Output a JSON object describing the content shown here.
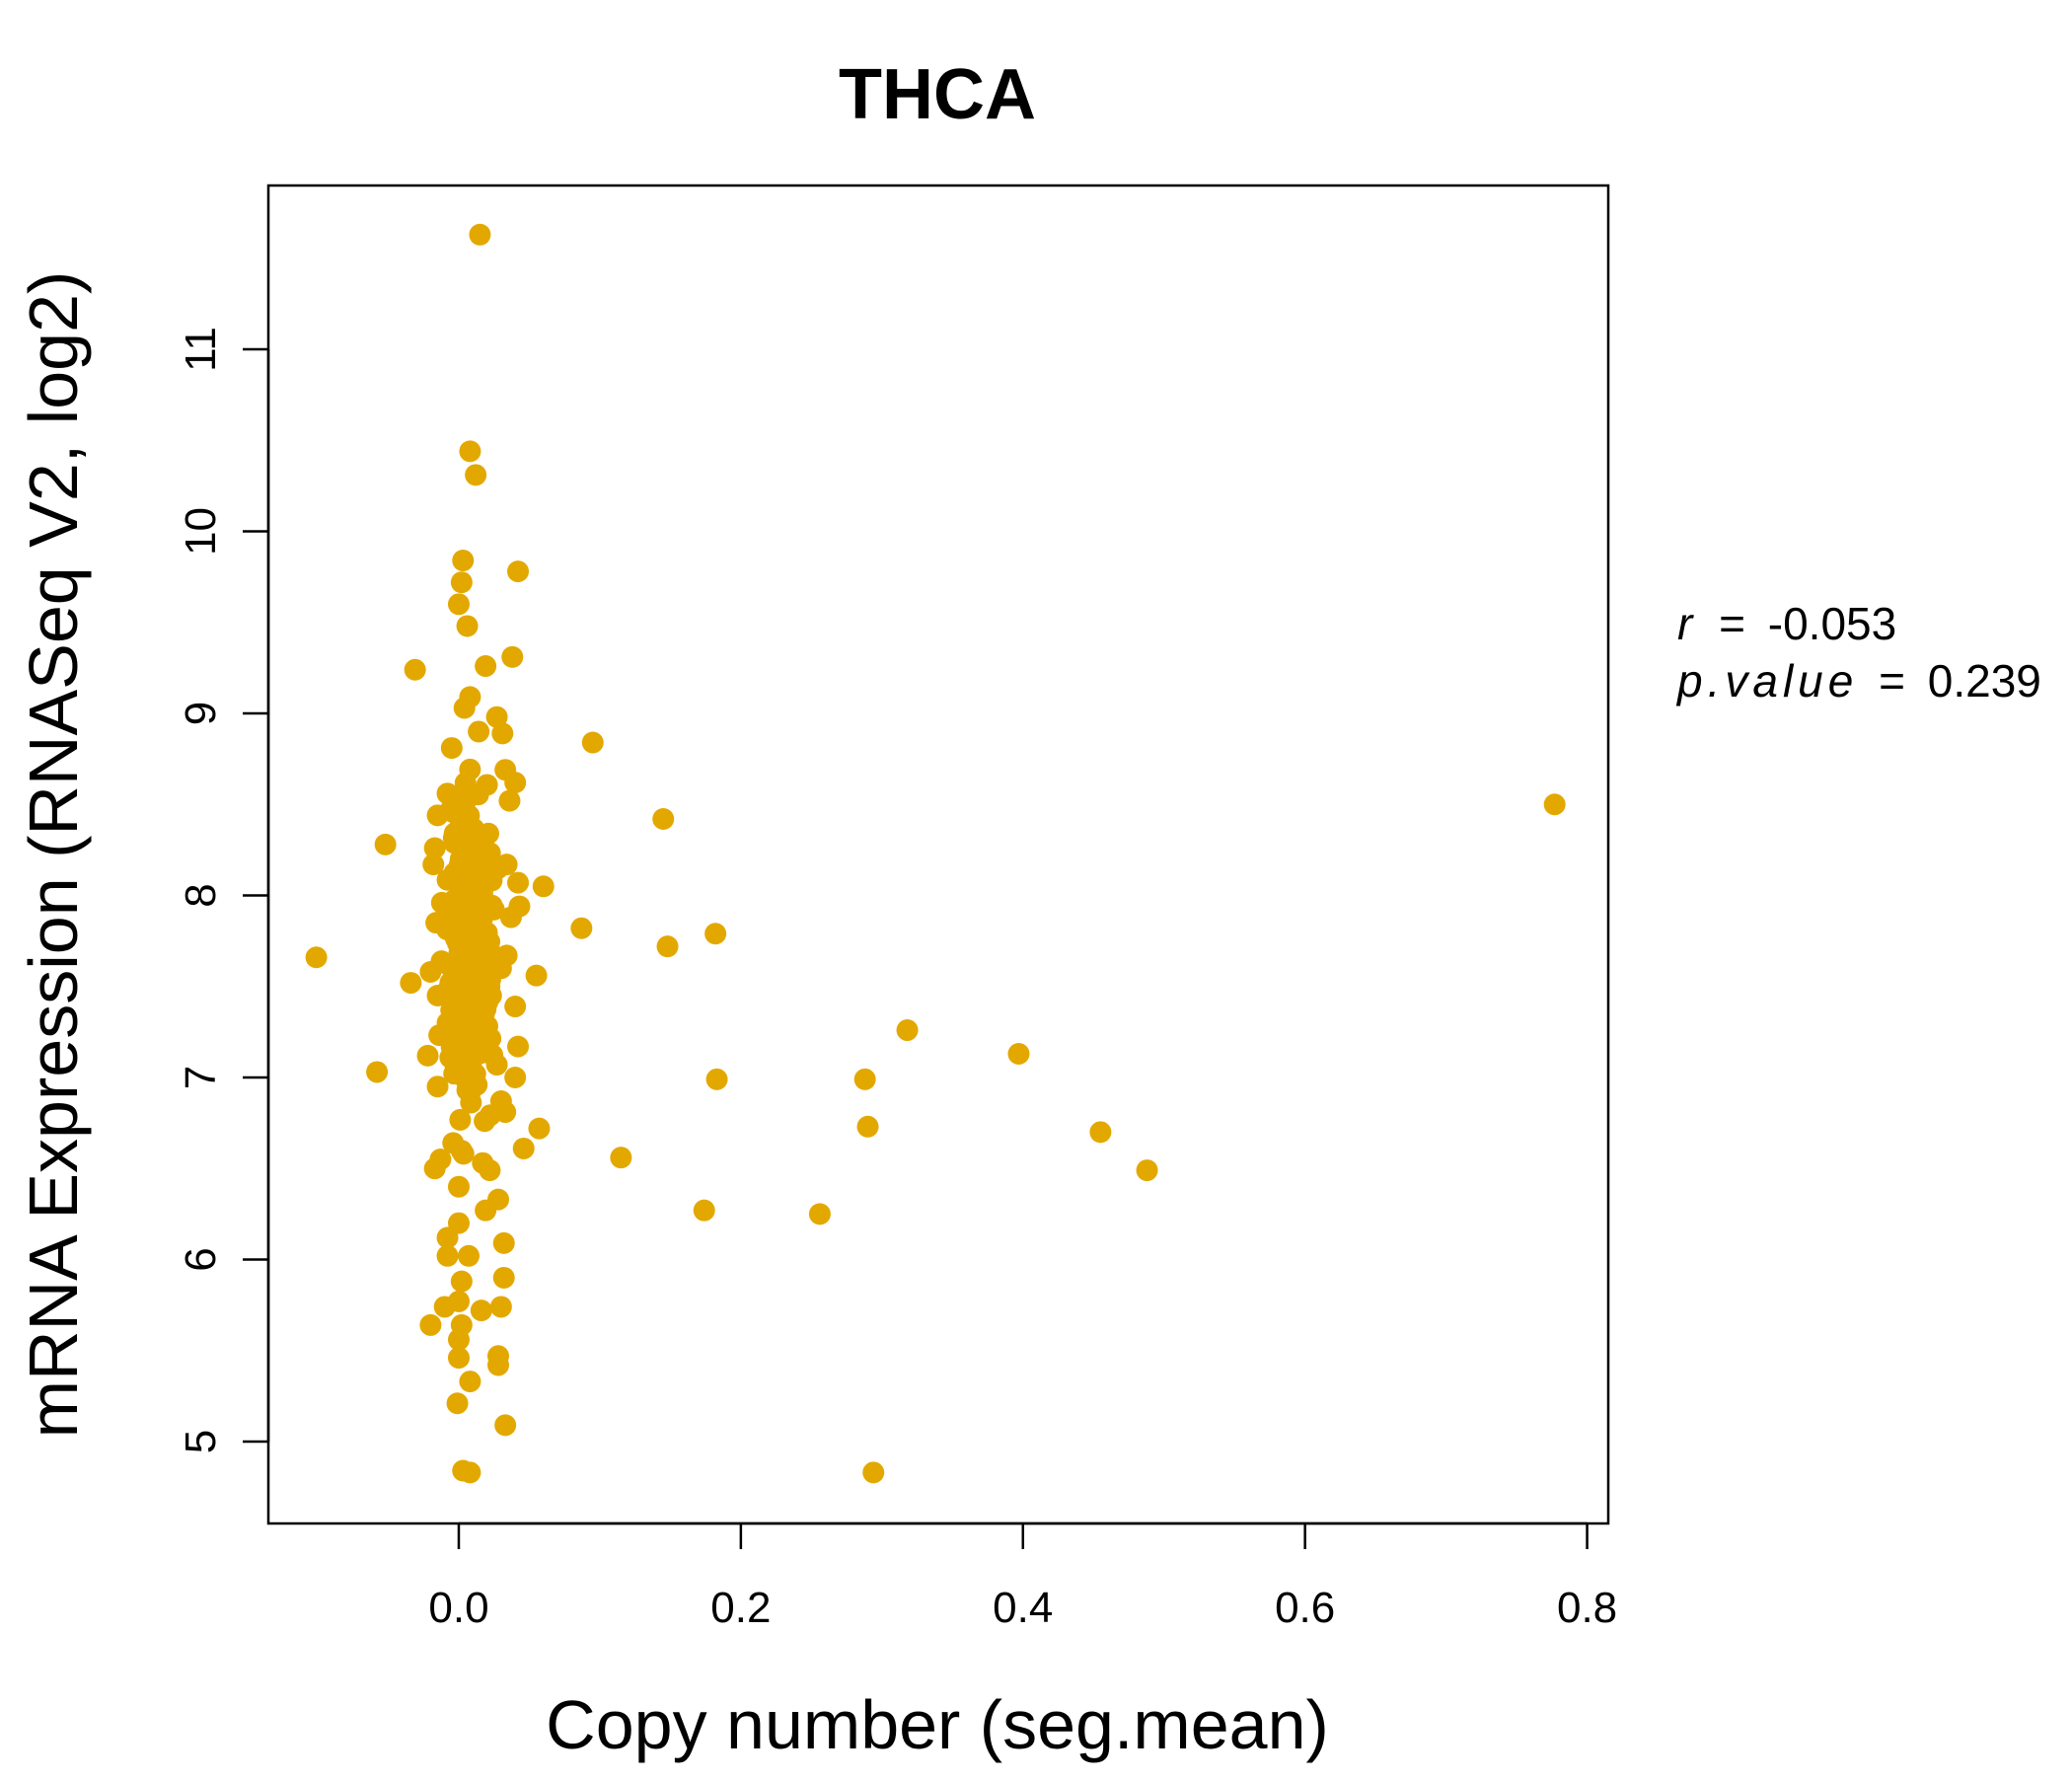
{
  "chart_data": {
    "type": "scatter",
    "title": "THCA",
    "xlabel": "Copy number (seg.mean)",
    "ylabel": "mRNA Expression (RNASeq V2, log2)",
    "xlim": [
      -0.135,
      0.815
    ],
    "ylim": [
      4.55,
      11.9
    ],
    "x_ticks": [
      0.0,
      0.2,
      0.4,
      0.6,
      0.8
    ],
    "x_tick_labels": [
      "0.0",
      "0.2",
      "0.4",
      "0.6",
      "0.8"
    ],
    "y_ticks": [
      5,
      6,
      7,
      8,
      9,
      10,
      11
    ],
    "y_tick_labels": [
      "5",
      "6",
      "7",
      "8",
      "9",
      "10",
      "11"
    ],
    "point_color": "#E3A800",
    "title_color": "#E3A800",
    "stats": {
      "r_label": "r",
      "r_value": "-0.053",
      "p_label": "p.value",
      "p_value": "0.239",
      "equals": "="
    },
    "outer_points": [
      [
        0.015,
        11.63
      ],
      [
        0.008,
        10.44
      ],
      [
        0.012,
        10.31
      ],
      [
        0.003,
        9.84
      ],
      [
        0.042,
        9.78
      ],
      [
        0.002,
        9.72
      ],
      [
        0.0,
        9.6
      ],
      [
        0.006,
        9.48
      ],
      [
        0.038,
        9.31
      ],
      [
        0.019,
        9.26
      ],
      [
        -0.031,
        9.24
      ],
      [
        0.008,
        9.09
      ],
      [
        0.004,
        9.03
      ],
      [
        0.027,
        8.98
      ],
      [
        0.031,
        8.89
      ],
      [
        0.095,
        8.84
      ],
      [
        -0.005,
        8.81
      ],
      [
        0.033,
        8.69
      ],
      [
        0.04,
        8.62
      ],
      [
        -0.008,
        8.56
      ],
      [
        0.036,
        8.52
      ],
      [
        0.777,
        8.5
      ],
      [
        -0.015,
        8.44
      ],
      [
        0.145,
        8.42
      ],
      [
        0.021,
        8.34
      ],
      [
        -0.052,
        8.28
      ],
      [
        -0.017,
        8.26
      ],
      [
        0.034,
        8.17
      ],
      [
        -0.018,
        8.17
      ],
      [
        0.042,
        8.07
      ],
      [
        0.06,
        8.05
      ],
      [
        -0.012,
        7.96
      ],
      [
        0.043,
        7.94
      ],
      [
        0.037,
        7.88
      ],
      [
        -0.016,
        7.85
      ],
      [
        0.087,
        7.82
      ],
      [
        0.182,
        7.79
      ],
      [
        0.148,
        7.72
      ],
      [
        0.034,
        7.67
      ],
      [
        -0.101,
        7.66
      ],
      [
        0.03,
        7.6
      ],
      [
        -0.02,
        7.58
      ],
      [
        0.055,
        7.56
      ],
      [
        -0.034,
        7.52
      ],
      [
        -0.015,
        7.45
      ],
      [
        0.04,
        7.39
      ],
      [
        -0.008,
        7.3
      ],
      [
        0.318,
        7.26
      ],
      [
        0.02,
        7.24
      ],
      [
        -0.003,
        7.18
      ],
      [
        0.042,
        7.17
      ],
      [
        0.397,
        7.13
      ],
      [
        -0.022,
        7.12
      ],
      [
        0.027,
        7.07
      ],
      [
        -0.058,
        7.03
      ],
      [
        0.04,
        7.0
      ],
      [
        0.183,
        6.99
      ],
      [
        0.288,
        6.99
      ],
      [
        -0.015,
        6.95
      ],
      [
        0.03,
        6.87
      ],
      [
        0.033,
        6.81
      ],
      [
        0.29,
        6.73
      ],
      [
        0.057,
        6.72
      ],
      [
        0.455,
        6.7
      ],
      [
        -0.004,
        6.64
      ],
      [
        0.046,
        6.61
      ],
      [
        0.115,
        6.56
      ],
      [
        -0.013,
        6.55
      ],
      [
        0.017,
        6.53
      ],
      [
        -0.017,
        6.5
      ],
      [
        0.488,
        6.49
      ],
      [
        0.022,
        6.49
      ],
      [
        0.0,
        6.4
      ],
      [
        0.028,
        6.33
      ],
      [
        0.174,
        6.27
      ],
      [
        0.019,
        6.27
      ],
      [
        0.256,
        6.25
      ],
      [
        0.0,
        6.2
      ],
      [
        0.032,
        6.09
      ],
      [
        -0.008,
        6.12
      ],
      [
        -0.008,
        6.02
      ],
      [
        0.007,
        6.02
      ],
      [
        0.032,
        5.9
      ],
      [
        0.002,
        5.88
      ],
      [
        0.0,
        5.77
      ],
      [
        -0.01,
        5.74
      ],
      [
        0.03,
        5.74
      ],
      [
        0.016,
        5.72
      ],
      [
        -0.02,
        5.64
      ],
      [
        0.002,
        5.64
      ],
      [
        0.0,
        5.56
      ],
      [
        0.028,
        5.47
      ],
      [
        0.0,
        5.46
      ],
      [
        0.028,
        5.42
      ],
      [
        0.008,
        5.33
      ],
      [
        -0.001,
        5.21
      ],
      [
        0.033,
        5.09
      ],
      [
        0.003,
        4.84
      ],
      [
        0.008,
        4.83
      ],
      [
        0.294,
        4.83
      ]
    ],
    "core_cluster": {
      "point_count": 420,
      "x_range": [
        -0.02,
        0.035
      ],
      "y_range": [
        6.5,
        8.9
      ]
    }
  }
}
